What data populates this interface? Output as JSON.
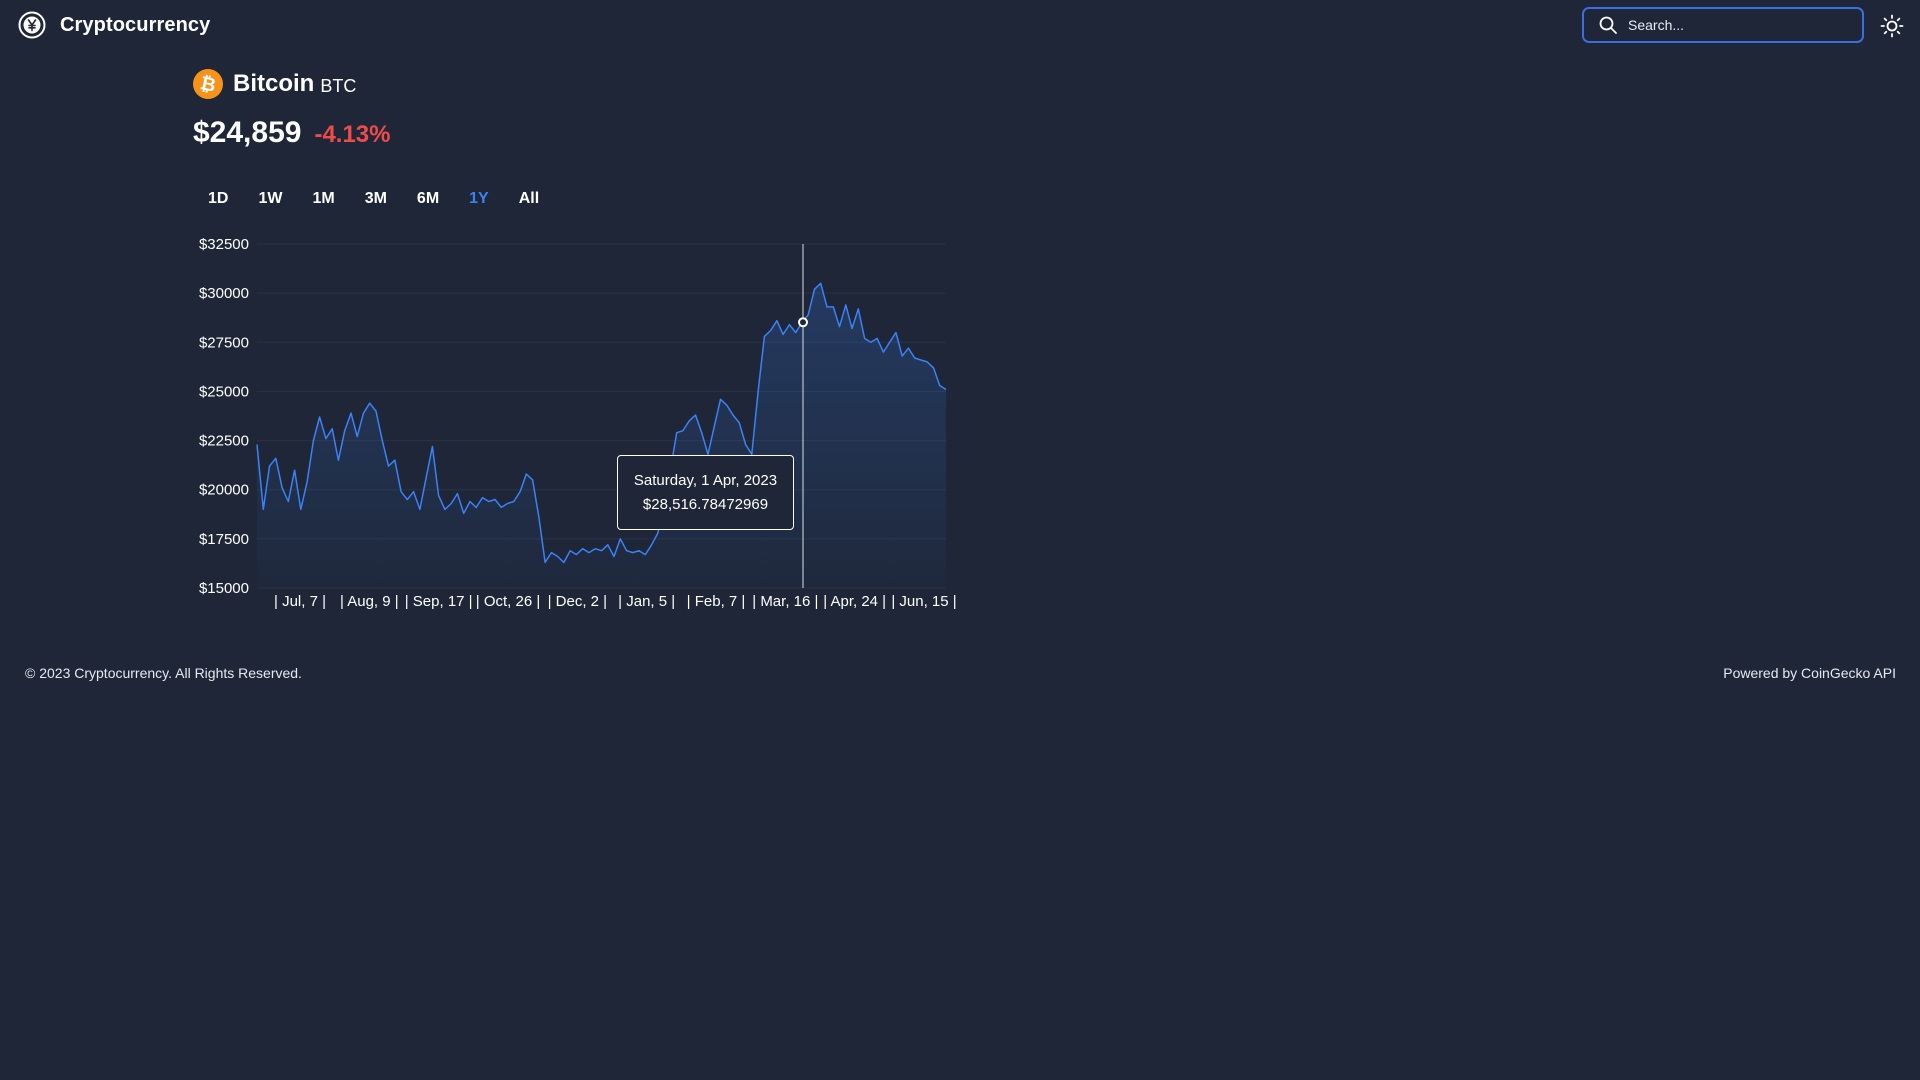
{
  "app": {
    "title": "Cryptocurrency",
    "brand_icon": "yen-circle-icon"
  },
  "search": {
    "placeholder": "Search...",
    "value": ""
  },
  "theme_toggle": {
    "icon": "sun-icon"
  },
  "coin": {
    "name": "Bitcoin",
    "symbol": "BTC",
    "logo_icon": "bitcoin-logo-icon",
    "logo_color": "#f7931a",
    "price": "$24,859",
    "change": "-4.13%",
    "change_color": "#ef4b4b"
  },
  "ranges": [
    {
      "label": "1D",
      "active": false
    },
    {
      "label": "1W",
      "active": false
    },
    {
      "label": "1M",
      "active": false
    },
    {
      "label": "3M",
      "active": false
    },
    {
      "label": "6M",
      "active": false
    },
    {
      "label": "1Y",
      "active": true
    },
    {
      "label": "All",
      "active": false
    }
  ],
  "accent_color": "#3b82f6",
  "chart_data": {
    "type": "area",
    "title": "",
    "xlabel": "",
    "ylabel": "",
    "ylim": [
      15000,
      32500
    ],
    "y_ticks": [
      "$32500",
      "$30000",
      "$27500",
      "$25000",
      "$22500",
      "$20000",
      "$17500",
      "$15000"
    ],
    "y_tick_values": [
      32500,
      30000,
      27500,
      25000,
      22500,
      20000,
      17500,
      15000
    ],
    "x_ticks": [
      "| Jul, 7 |",
      "| Aug, 9 |",
      "| Sep, 17 |",
      "| Oct, 26 |",
      "| Dec, 2 |",
      "| Jan, 5 |",
      "| Feb, 7 |",
      "| Mar, 16 |",
      "| Apr, 24 |",
      "| Jun, 15 |"
    ],
    "grid": true,
    "line_color": "#3b82f6",
    "series": [
      {
        "values": [
          22300,
          19000,
          21200,
          21600,
          20100,
          19400,
          21000,
          19000,
          20400,
          22500,
          23700,
          22600,
          23100,
          21500,
          23000,
          23900,
          22700,
          23900,
          24400,
          24000,
          22500,
          21200,
          21500,
          19900,
          19500,
          19900,
          19000,
          20600,
          22200,
          19700,
          19000,
          19300,
          19800,
          18800,
          19400,
          19100,
          19600,
          19400,
          19500,
          19100,
          19300,
          19400,
          19900,
          20800,
          20500,
          18600,
          16300,
          16800,
          16600,
          16300,
          16900,
          16700,
          17000,
          16800,
          17000,
          16900,
          17200,
          16600,
          17500,
          16900,
          16800,
          16900,
          16700,
          17200,
          17800,
          19800,
          21000,
          22900,
          23000,
          23500,
          23800,
          22900,
          21800,
          23200,
          24600,
          24300,
          23800,
          23400,
          22300,
          21800,
          25000,
          27800,
          28100,
          28600,
          27900,
          28400,
          28000,
          28500,
          28900,
          30200,
          30500,
          29300,
          29300,
          28300,
          29400,
          28200,
          29200,
          27700,
          27500,
          27700,
          27000,
          27500,
          28000,
          26800,
          27200,
          26700,
          26600,
          26500,
          26200,
          25300,
          25100
        ]
      }
    ],
    "hover": {
      "date": "Saturday, 1 Apr, 2023",
      "value": "$28,516.78472969",
      "price": 28516.78
    }
  },
  "footer": {
    "copyright": "© 2023 Cryptocurrency. All Rights Reserved.",
    "powered_by": "Powered by CoinGecko API"
  }
}
